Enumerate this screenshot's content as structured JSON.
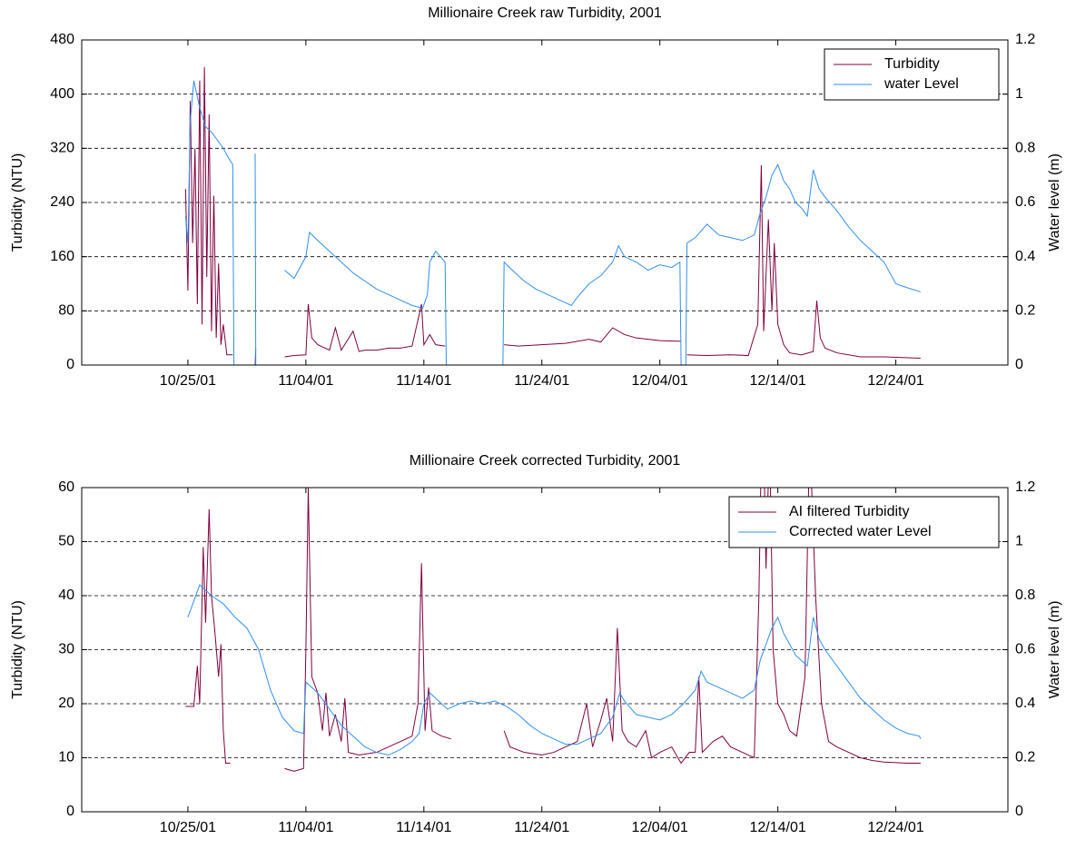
{
  "chart_data": [
    {
      "type": "line",
      "title": "Millionaire Creek raw Turbidity, 2001",
      "ylabel": "Turbidity (NTU)",
      "y2label": "Water level (m)",
      "xlim": [
        289,
        367.5
      ],
      "xticks": [
        {
          "value": 298,
          "label": "10/25/01"
        },
        {
          "value": 308,
          "label": "11/04/01"
        },
        {
          "value": 318,
          "label": "11/14/01"
        },
        {
          "value": 328,
          "label": "11/24/01"
        },
        {
          "value": 338,
          "label": "12/04/01"
        },
        {
          "value": 348,
          "label": "12/14/01"
        },
        {
          "value": 358,
          "label": "12/24/01"
        }
      ],
      "ylim": [
        0,
        480
      ],
      "yticks": [
        0,
        80,
        160,
        240,
        320,
        400,
        480
      ],
      "y2lim": [
        0,
        1.2
      ],
      "y2ticks": [
        0,
        0.2,
        0.4,
        0.6,
        0.8,
        1,
        1.2
      ],
      "grid": true,
      "legend": "upper right",
      "series": [
        {
          "name": "Turbidity",
          "color": "#800040",
          "axis": "y",
          "x": [
            297.8,
            298.0,
            298.2,
            298.4,
            298.6,
            298.8,
            299.0,
            299.2,
            299.4,
            299.6,
            299.8,
            300.0,
            300.2,
            300.4,
            300.6,
            300.8,
            301.0,
            301.3,
            301.8,
            null,
            303.7,
            303.75,
            null,
            306.2,
            307,
            308,
            308.2,
            308.5,
            309,
            310,
            310.5,
            311,
            312,
            312.5,
            313,
            314,
            315,
            316,
            317,
            317.8,
            318,
            318.5,
            319,
            319.8,
            null,
            324.8,
            326,
            328,
            330,
            332,
            333,
            334,
            335,
            336,
            337,
            338,
            339.8,
            null,
            340.3,
            342,
            344,
            345.5,
            346.3,
            346.6,
            346.8,
            347.2,
            347.5,
            347.7,
            348,
            348.5,
            349,
            350,
            351,
            351.3,
            351.6,
            352,
            353,
            355,
            357,
            360.1
          ],
          "values": [
            260,
            110,
            390,
            180,
            320,
            90,
            420,
            60,
            440,
            130,
            370,
            50,
            250,
            40,
            150,
            30,
            60,
            15,
            15,
            null,
            0,
            25,
            null,
            12,
            14,
            15,
            90,
            40,
            30,
            22,
            55,
            22,
            50,
            20,
            22,
            22,
            25,
            25,
            28,
            90,
            30,
            45,
            30,
            28,
            null,
            30,
            28,
            30,
            32,
            38,
            34,
            55,
            45,
            40,
            38,
            36,
            35,
            null,
            15,
            14,
            15,
            14,
            60,
            295,
            50,
            215,
            80,
            180,
            60,
            30,
            18,
            15,
            20,
            95,
            40,
            25,
            18,
            12,
            12,
            10
          ]
        },
        {
          "name": "water Level",
          "color": "#2e8fef",
          "axis": "y2",
          "x": [
            297.8,
            298.0,
            298.2,
            298.5,
            299.0,
            299.5,
            300,
            300.5,
            301,
            301.5,
            301.8,
            301.9,
            null,
            303.7,
            303.75,
            null,
            306.2,
            307,
            308,
            308.3,
            309,
            310,
            311,
            312,
            313,
            314,
            315,
            316,
            317,
            317.9,
            318.3,
            318.5,
            319,
            319.8,
            319.9,
            null,
            324.7,
            324.8,
            325.5,
            326.5,
            327.5,
            328.5,
            329.5,
            330.5,
            331,
            332,
            333,
            334,
            334.5,
            335,
            336,
            337,
            338,
            339,
            339.7,
            339.8,
            null,
            340.2,
            340.3,
            341,
            342,
            342.5,
            343,
            344,
            345,
            346,
            346.5,
            347,
            347.5,
            348,
            348.5,
            349,
            349.5,
            350,
            350.5,
            351,
            351.5,
            352,
            353,
            354,
            355,
            356,
            357,
            358,
            359,
            360.1
          ],
          "values": [
            0.55,
            0.45,
            0.9,
            1.05,
            0.95,
            0.88,
            0.86,
            0.83,
            0.8,
            0.76,
            0.74,
            0,
            null,
            0.78,
            0,
            null,
            0.35,
            0.32,
            0.4,
            0.49,
            0.46,
            0.42,
            0.38,
            0.34,
            0.31,
            0.28,
            0.26,
            0.24,
            0.22,
            0.21,
            0.26,
            0.38,
            0.42,
            0.38,
            0,
            null,
            0,
            0.38,
            0.35,
            0.31,
            0.28,
            0.26,
            0.24,
            0.22,
            0.25,
            0.3,
            0.33,
            0.38,
            0.44,
            0.4,
            0.38,
            0.35,
            0.37,
            0.36,
            0.38,
            0,
            null,
            0,
            0.45,
            0.47,
            0.52,
            0.5,
            0.48,
            0.47,
            0.46,
            0.48,
            0.56,
            0.62,
            0.7,
            0.74,
            0.68,
            0.65,
            0.6,
            0.58,
            0.55,
            0.72,
            0.65,
            0.62,
            0.57,
            0.51,
            0.46,
            0.42,
            0.38,
            0.3,
            0.285,
            0.27
          ]
        }
      ]
    },
    {
      "type": "line",
      "title": "Millionaire Creek corrected Turbidity, 2001",
      "ylabel": "Turbidity (NTU)",
      "y2label": "Water level (m)",
      "xlim": [
        289,
        367.5
      ],
      "xticks": [
        {
          "value": 298,
          "label": "10/25/01"
        },
        {
          "value": 308,
          "label": "11/04/01"
        },
        {
          "value": 318,
          "label": "11/14/01"
        },
        {
          "value": 328,
          "label": "11/24/01"
        },
        {
          "value": 338,
          "label": "12/04/01"
        },
        {
          "value": 348,
          "label": "12/14/01"
        },
        {
          "value": 358,
          "label": "12/24/01"
        }
      ],
      "ylim": [
        0,
        60
      ],
      "yticks": [
        0,
        10,
        20,
        30,
        40,
        50,
        60
      ],
      "y2lim": [
        0,
        1.2
      ],
      "y2ticks": [
        0,
        0.2,
        0.4,
        0.6,
        0.8,
        1,
        1.2
      ],
      "grid": true,
      "legend": "upper right",
      "series": [
        {
          "name": "AI filtered Turbidity",
          "color": "#800040",
          "axis": "y",
          "x": [
            297.8,
            298.5,
            298.8,
            299.0,
            299.3,
            299.5,
            299.8,
            300,
            300.3,
            300.6,
            300.8,
            301.0,
            301.2,
            301.6,
            null,
            306.2,
            307,
            307.8,
            308,
            308.2,
            308.5,
            309,
            309.4,
            309.7,
            310,
            310.5,
            311,
            311.3,
            311.6,
            312.5,
            314,
            315,
            316,
            317,
            317.5,
            317.8,
            318.1,
            318.4,
            318.7,
            319.5,
            320.3,
            null,
            324.8,
            325.3,
            326.5,
            328,
            329,
            330,
            331,
            331.8,
            332.3,
            333,
            333.5,
            334,
            334.4,
            334.8,
            335.3,
            336,
            336.8,
            337.3,
            338,
            339,
            339.8,
            340.5,
            341,
            341.3,
            341.6,
            342.5,
            343.3,
            344,
            345,
            346,
            346.4,
            346.7,
            347,
            347.3,
            347.6,
            348,
            348.5,
            349,
            349.6,
            350.3,
            350.7,
            351.2,
            351.7,
            352.3,
            353,
            354,
            355,
            356,
            357,
            359,
            360.1
          ],
          "values": [
            19.5,
            19.5,
            27,
            20,
            49,
            35,
            56,
            40,
            33,
            25,
            31,
            15,
            9,
            9,
            null,
            8,
            7.5,
            8,
            30,
            60,
            25,
            22,
            15,
            22,
            14,
            18,
            13,
            21,
            11,
            10.5,
            11,
            12,
            13,
            14,
            20,
            46,
            15,
            23,
            15,
            14,
            13.5,
            null,
            15,
            12,
            11,
            10.5,
            11,
            12,
            13,
            20,
            12,
            17,
            21,
            13,
            34,
            15,
            13,
            12,
            15,
            10,
            11,
            12,
            9,
            11,
            11,
            25,
            11,
            13,
            14,
            12,
            11,
            10,
            40,
            80,
            45,
            70,
            30,
            20,
            18,
            15,
            14,
            25,
            70,
            40,
            20,
            13,
            12,
            11,
            10,
            9.5,
            9.2,
            9,
            9
          ]
        },
        {
          "name": "Corrected water Level",
          "color": "#2e8fef",
          "axis": "y2",
          "x": [
            298,
            298.5,
            299,
            299.5,
            300,
            301,
            302,
            303,
            304,
            305,
            306,
            307,
            307.8,
            308,
            308.5,
            309,
            310,
            311,
            312,
            313,
            314,
            315,
            316,
            317,
            317.6,
            318,
            318.5,
            319,
            320,
            321,
            322,
            323,
            324,
            325,
            326,
            327,
            328,
            329,
            330,
            331,
            332,
            333,
            334,
            334.6,
            335,
            336,
            337,
            338,
            339,
            340,
            341,
            341.5,
            342,
            343,
            344,
            345,
            346,
            346.5,
            347,
            347.5,
            348,
            348.5,
            349,
            349.5,
            350,
            350.5,
            351,
            351.5,
            352,
            353,
            354,
            355,
            356,
            357,
            358,
            359,
            360,
            360.1
          ],
          "values": [
            0.72,
            0.78,
            0.84,
            0.82,
            0.8,
            0.77,
            0.72,
            0.68,
            0.6,
            0.45,
            0.35,
            0.3,
            0.29,
            0.48,
            0.46,
            0.44,
            0.38,
            0.32,
            0.28,
            0.24,
            0.22,
            0.21,
            0.23,
            0.26,
            0.29,
            0.4,
            0.44,
            0.42,
            0.38,
            0.4,
            0.41,
            0.4,
            0.41,
            0.39,
            0.36,
            0.32,
            0.29,
            0.27,
            0.25,
            0.25,
            0.27,
            0.29,
            0.35,
            0.44,
            0.41,
            0.36,
            0.35,
            0.34,
            0.36,
            0.4,
            0.45,
            0.52,
            0.48,
            0.46,
            0.44,
            0.42,
            0.45,
            0.56,
            0.62,
            0.68,
            0.72,
            0.66,
            0.62,
            0.58,
            0.56,
            0.54,
            0.72,
            0.64,
            0.6,
            0.54,
            0.48,
            0.42,
            0.38,
            0.34,
            0.31,
            0.29,
            0.28,
            0.27
          ]
        }
      ]
    }
  ]
}
